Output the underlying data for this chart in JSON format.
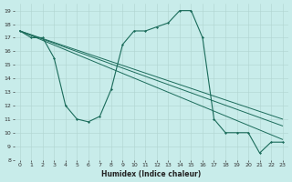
{
  "xlabel": "Humidex (Indice chaleur)",
  "bg_color": "#c8ecea",
  "grid_color": "#b0d4d0",
  "line_color": "#1a6b5a",
  "ylim": [
    8,
    19.5
  ],
  "xlim": [
    -0.5,
    23.5
  ],
  "yticks": [
    8,
    9,
    10,
    11,
    12,
    13,
    14,
    15,
    16,
    17,
    18,
    19
  ],
  "xticks": [
    0,
    1,
    2,
    3,
    4,
    5,
    6,
    7,
    8,
    9,
    10,
    11,
    12,
    13,
    14,
    15,
    16,
    17,
    18,
    19,
    20,
    21,
    22,
    23
  ],
  "wavy_line": {
    "x": [
      0,
      1,
      2,
      3,
      4,
      5,
      6,
      7,
      8,
      9,
      10,
      11,
      12,
      13,
      14,
      15,
      16,
      17,
      18,
      19,
      20,
      21,
      22,
      23
    ],
    "y": [
      17.5,
      17.0,
      17.0,
      15.5,
      12.0,
      11.0,
      10.8,
      11.2,
      13.2,
      16.5,
      17.5,
      17.5,
      17.8,
      18.1,
      19.0,
      19.0,
      17.0,
      11.0,
      10.0,
      10.0,
      10.0,
      8.5,
      9.3,
      9.3
    ]
  },
  "diag_line1": {
    "x": [
      0,
      23
    ],
    "y": [
      17.5,
      9.3
    ]
  },
  "diag_line2": {
    "x": [
      0,
      3,
      9,
      18,
      21,
      23
    ],
    "y": [
      17.5,
      15.5,
      14.5,
      11.0,
      10.0,
      10.5
    ]
  },
  "diag_line3": {
    "x": [
      0,
      3,
      9,
      18,
      21,
      23
    ],
    "y": [
      17.5,
      15.5,
      14.0,
      10.5,
      10.0,
      9.8
    ]
  }
}
